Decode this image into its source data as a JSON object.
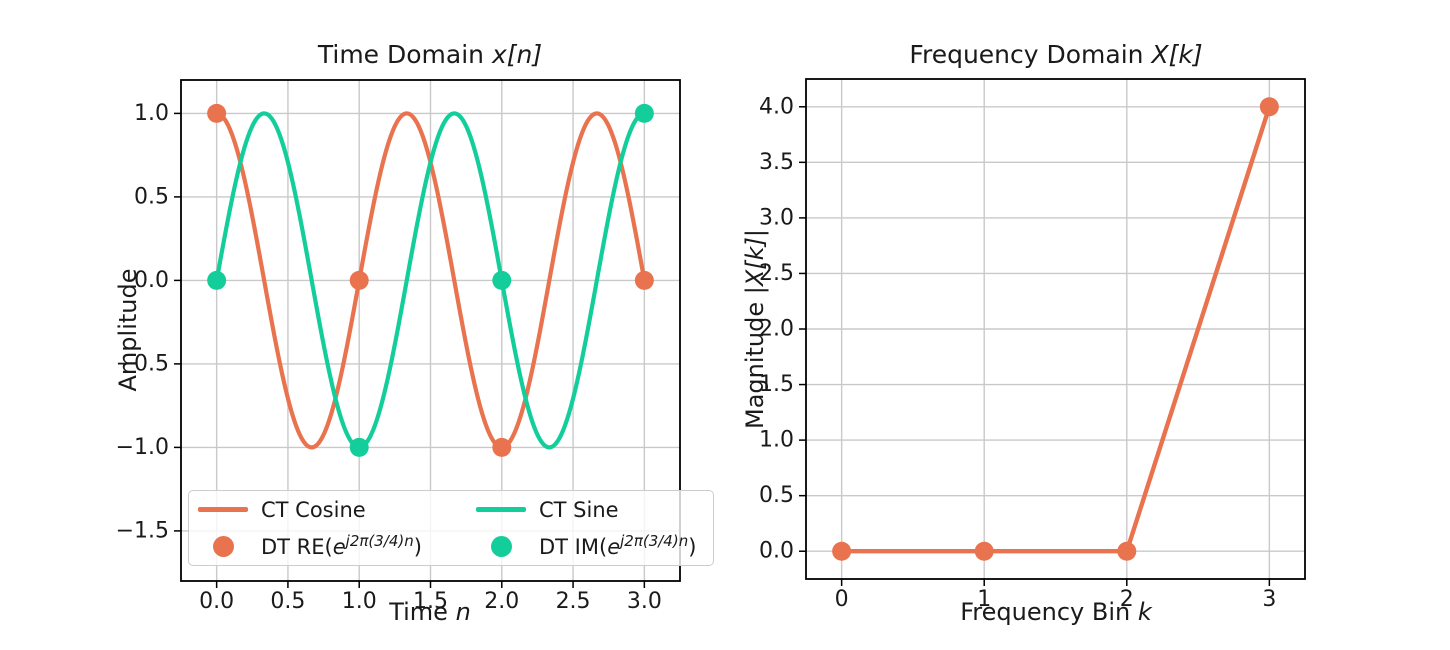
{
  "colors": {
    "orange": "#E8734E",
    "green": "#13CE9B",
    "grid": "#C9C9C9",
    "spine": "#000000",
    "text": "#1A1A1A",
    "legend_border": "#CCCCCC"
  },
  "chart_data": [
    {
      "id": "time-domain",
      "type": "line",
      "title": {
        "prefix": "Time Domain ",
        "math": "x[n]"
      },
      "xlabel": {
        "prefix": "Time ",
        "math": "n"
      },
      "ylabel": {
        "prefix": "Amplitude",
        "math": ""
      },
      "xlim": [
        -0.25,
        3.25
      ],
      "ylim": [
        -1.8,
        1.2
      ],
      "grid": true,
      "legend_position": "lower center, 2 columns",
      "xticks": {
        "values": [
          0,
          0.5,
          1,
          1.5,
          2,
          2.5,
          3
        ],
        "labels": [
          "0.0",
          "0.5",
          "1.0",
          "1.5",
          "2.0",
          "2.5",
          "3.0"
        ]
      },
      "yticks": {
        "values": [
          -1.5,
          -1,
          -0.5,
          0,
          0.5,
          1
        ],
        "labels": [
          "−1.5",
          "−1.0",
          "−0.5",
          "0.0",
          "0.5",
          "1.0"
        ]
      },
      "series": [
        {
          "name": "CT Cosine",
          "kind": "curve",
          "formula": "cos(2π(3/4)t)",
          "fn": "cos",
          "freq": 0.75,
          "t_range": [
            0,
            3
          ],
          "color_key": "orange",
          "linewidth": 4.2
        },
        {
          "name": "CT Sine",
          "kind": "curve",
          "formula": "sin(2π(3/4)t)",
          "fn": "sin",
          "freq": 0.75,
          "t_range": [
            0,
            3
          ],
          "color_key": "green",
          "linewidth": 4.2
        },
        {
          "name": "DT RE(e^(j2π(3/4)n))",
          "name_parts": {
            "prefix": "DT RE(",
            "base": "e",
            "sup": "j2π(3/4)n",
            "suffix": ")"
          },
          "kind": "scatter",
          "x": [
            0,
            1,
            2,
            3
          ],
          "y": [
            1,
            0,
            -1,
            0
          ],
          "color_key": "orange",
          "marker_radius": 9.5
        },
        {
          "name": "DT IM(e^(j2π(3/4)n))",
          "name_parts": {
            "prefix": "DT IM(",
            "base": "e",
            "sup": "j2π(3/4)n",
            "suffix": ")"
          },
          "kind": "scatter",
          "x": [
            0,
            1,
            2,
            3
          ],
          "y": [
            0,
            -1,
            0,
            1
          ],
          "color_key": "green",
          "marker_radius": 9.5
        }
      ]
    },
    {
      "id": "frequency-domain",
      "type": "line",
      "title": {
        "prefix": "Frequency Domain ",
        "math": "X[k]"
      },
      "xlabel": {
        "prefix": "Frequency Bin ",
        "math": "k"
      },
      "ylabel": {
        "prefix": "Magnitude ",
        "math": "|X[k]|"
      },
      "xlim": [
        -0.25,
        3.25
      ],
      "ylim": [
        -0.25,
        4.25
      ],
      "grid": true,
      "xticks": {
        "values": [
          0,
          1,
          2,
          3
        ],
        "labels": [
          "0",
          "1",
          "2",
          "3"
        ]
      },
      "yticks": {
        "values": [
          0,
          0.5,
          1,
          1.5,
          2,
          2.5,
          3,
          3.5,
          4
        ],
        "labels": [
          "0.0",
          "0.5",
          "1.0",
          "1.5",
          "2.0",
          "2.5",
          "3.0",
          "3.5",
          "4.0"
        ]
      },
      "series": [
        {
          "name": "Magnitude |X[k]|",
          "kind": "line+markers",
          "x": [
            0,
            1,
            2,
            3
          ],
          "y": [
            0,
            0,
            0,
            4
          ],
          "color_key": "orange",
          "linewidth": 4.4,
          "marker_radius": 9.5
        }
      ]
    }
  ]
}
